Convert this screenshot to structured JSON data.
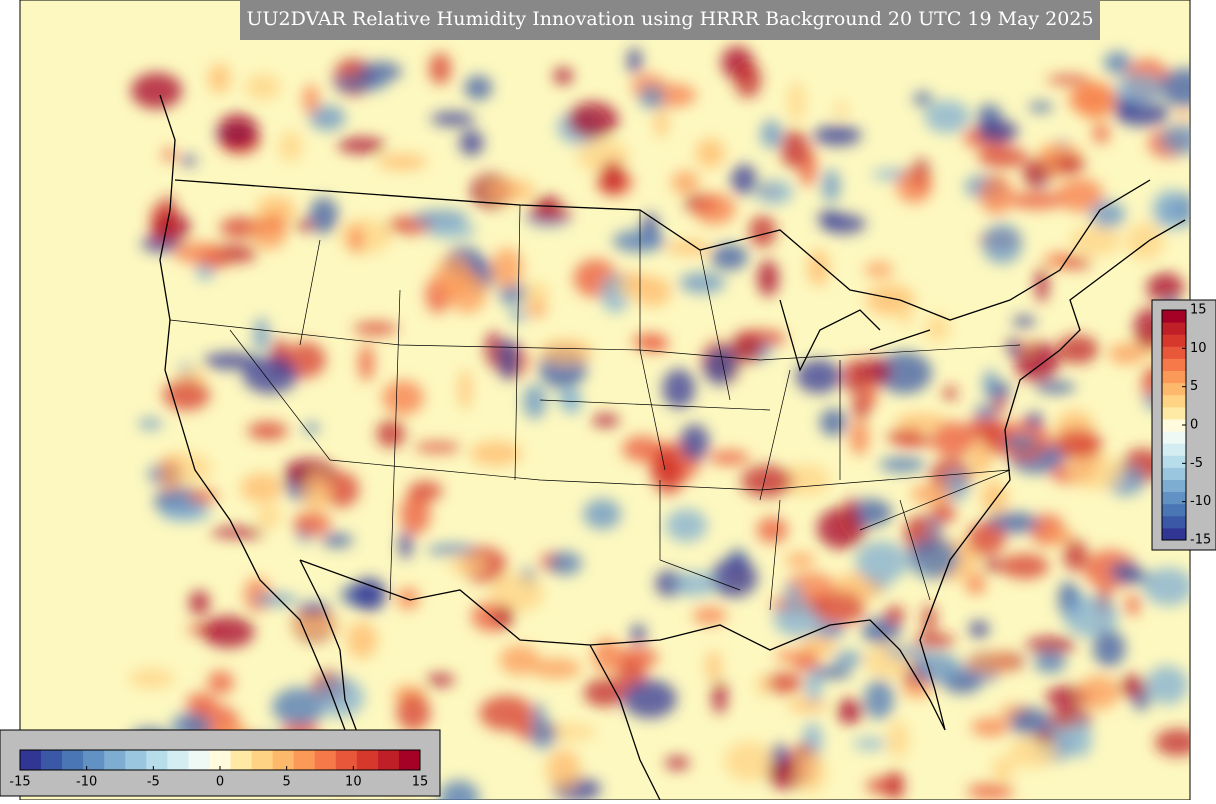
{
  "title": "UU2DVAR Relative Humidity Innovation using HRRR Background 20 UTC 19 May 2025",
  "colorbar": {
    "colors": [
      "#313695",
      "#3a58a5",
      "#4a76b5",
      "#6292c4",
      "#7eadd2",
      "#9ac7df",
      "#b7ddeb",
      "#d4edf3",
      "#eef8f5",
      "#fffbdc",
      "#feeaa5",
      "#fed384",
      "#fdb96b",
      "#fb9a58",
      "#f67a49",
      "#e9573a",
      "#d6392c",
      "#bf1f26",
      "#a50026"
    ],
    "right_ticks": [
      15,
      10,
      5,
      0,
      -5,
      -10,
      -15
    ],
    "bottom_ticks": [
      -15,
      -10,
      -5,
      0,
      5,
      10,
      15
    ]
  }
}
